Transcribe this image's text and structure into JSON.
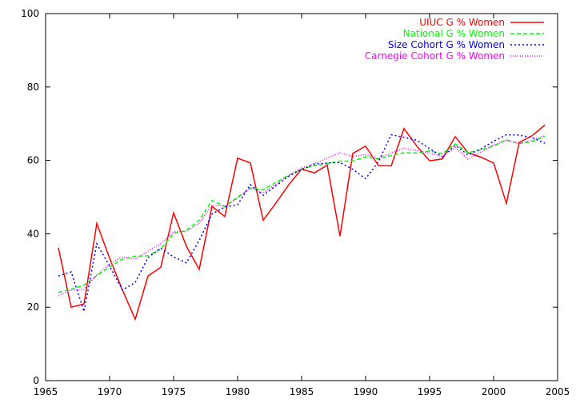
{
  "chart_data": {
    "type": "line",
    "title": "",
    "xlabel": "",
    "ylabel": "",
    "xlim": [
      1965,
      2005
    ],
    "ylim": [
      0,
      100
    ],
    "xticks": [
      1965,
      1970,
      1975,
      1980,
      1985,
      1990,
      1995,
      2000,
      2005
    ],
    "yticks": [
      0,
      20,
      40,
      60,
      80,
      100
    ],
    "grid": false,
    "legend_position": "top-right",
    "series": [
      {
        "name": "UIUC G % Women",
        "color": "#ff0000",
        "dash": "solid",
        "points": [
          [
            1966,
            36.2
          ],
          [
            1967,
            20.0
          ],
          [
            1968,
            20.9
          ],
          [
            1969,
            42.8
          ],
          [
            1970,
            33.4
          ],
          [
            1971,
            24.7
          ],
          [
            1972,
            16.7
          ],
          [
            1973,
            28.5
          ],
          [
            1974,
            30.9
          ],
          [
            1975,
            45.7
          ],
          [
            1976,
            36.6
          ],
          [
            1977,
            30.3
          ],
          [
            1978,
            47.5
          ],
          [
            1979,
            44.7
          ],
          [
            1980,
            60.6
          ],
          [
            1981,
            59.3
          ],
          [
            1982,
            43.7
          ],
          [
            1983,
            48.4
          ],
          [
            1984,
            53.4
          ],
          [
            1985,
            57.6
          ],
          [
            1986,
            56.6
          ],
          [
            1987,
            58.7
          ],
          [
            1988,
            39.4
          ],
          [
            1989,
            61.9
          ],
          [
            1990,
            63.9
          ],
          [
            1991,
            58.6
          ],
          [
            1992,
            58.5
          ],
          [
            1993,
            68.7
          ],
          [
            1994,
            63.9
          ],
          [
            1995,
            59.9
          ],
          [
            1996,
            60.4
          ],
          [
            1997,
            66.5
          ],
          [
            1998,
            62.1
          ],
          [
            1999,
            60.9
          ],
          [
            2000,
            59.3
          ],
          [
            2001,
            48.3
          ],
          [
            2002,
            64.9
          ],
          [
            2003,
            66.7
          ],
          [
            2004,
            69.6
          ]
        ]
      },
      {
        "name": "National G % Women",
        "color": "#00ff00",
        "dash": "dashed",
        "points": [
          [
            1966,
            24.0
          ],
          [
            1967,
            24.9
          ],
          [
            1968,
            26.0
          ],
          [
            1969,
            28.6
          ],
          [
            1970,
            31.0
          ],
          [
            1971,
            33.1
          ],
          [
            1972,
            33.9
          ],
          [
            1973,
            34.0
          ],
          [
            1974,
            35.9
          ],
          [
            1975,
            40.1
          ],
          [
            1976,
            40.9
          ],
          [
            1977,
            43.7
          ],
          [
            1978,
            49.1
          ],
          [
            1979,
            47.4
          ],
          [
            1980,
            50.0
          ],
          [
            1981,
            52.4
          ],
          [
            1982,
            52.0
          ],
          [
            1983,
            54.0
          ],
          [
            1984,
            56.0
          ],
          [
            1985,
            57.6
          ],
          [
            1986,
            58.6
          ],
          [
            1987,
            59.1
          ],
          [
            1988,
            59.8
          ],
          [
            1989,
            59.8
          ],
          [
            1990,
            61.0
          ],
          [
            1991,
            60.4
          ],
          [
            1992,
            61.3
          ],
          [
            1993,
            62.1
          ],
          [
            1994,
            62.0
          ],
          [
            1995,
            62.6
          ],
          [
            1996,
            61.8
          ],
          [
            1997,
            64.5
          ],
          [
            1998,
            62.1
          ],
          [
            1999,
            62.9
          ],
          [
            2000,
            63.9
          ],
          [
            2001,
            65.6
          ],
          [
            2002,
            64.6
          ],
          [
            2003,
            65.1
          ],
          [
            2004,
            66.6
          ]
        ]
      },
      {
        "name": "Size Cohort G % Women",
        "color": "#0000ff",
        "dash": "dotted",
        "points": [
          [
            1966,
            28.5
          ],
          [
            1967,
            29.6
          ],
          [
            1968,
            18.8
          ],
          [
            1969,
            37.3
          ],
          [
            1970,
            31.2
          ],
          [
            1971,
            24.7
          ],
          [
            1972,
            26.7
          ],
          [
            1973,
            33.5
          ],
          [
            1974,
            36.1
          ],
          [
            1975,
            33.7
          ],
          [
            1976,
            32.1
          ],
          [
            1977,
            38.2
          ],
          [
            1978,
            45.4
          ],
          [
            1979,
            47.3
          ],
          [
            1980,
            47.9
          ],
          [
            1981,
            53.4
          ],
          [
            1982,
            50.5
          ],
          [
            1983,
            53.1
          ],
          [
            1984,
            55.7
          ],
          [
            1985,
            57.5
          ],
          [
            1986,
            59.0
          ],
          [
            1987,
            59.3
          ],
          [
            1988,
            59.4
          ],
          [
            1989,
            57.6
          ],
          [
            1990,
            55.0
          ],
          [
            1991,
            59.6
          ],
          [
            1992,
            67.0
          ],
          [
            1993,
            66.3
          ],
          [
            1994,
            65.5
          ],
          [
            1995,
            63.2
          ],
          [
            1996,
            61.0
          ],
          [
            1997,
            64.1
          ],
          [
            1998,
            61.5
          ],
          [
            1999,
            63.1
          ],
          [
            2000,
            65.2
          ],
          [
            2001,
            67.0
          ],
          [
            2002,
            66.9
          ],
          [
            2003,
            66.2
          ],
          [
            2004,
            64.7
          ]
        ]
      },
      {
        "name": "Carnegie Cohort G % Women",
        "color": "#ff00ff",
        "dash": "dotted-fine",
        "points": [
          [
            1966,
            23.1
          ],
          [
            1967,
            24.7
          ],
          [
            1968,
            24.9
          ],
          [
            1969,
            28.8
          ],
          [
            1970,
            31.8
          ],
          [
            1971,
            33.7
          ],
          [
            1972,
            33.1
          ],
          [
            1973,
            35.3
          ],
          [
            1974,
            37.3
          ],
          [
            1975,
            40.6
          ],
          [
            1976,
            40.6
          ],
          [
            1977,
            42.9
          ],
          [
            1978,
            47.8
          ],
          [
            1979,
            47.6
          ],
          [
            1980,
            49.6
          ],
          [
            1981,
            52.6
          ],
          [
            1982,
            51.1
          ],
          [
            1983,
            53.5
          ],
          [
            1984,
            55.9
          ],
          [
            1985,
            57.9
          ],
          [
            1986,
            59.1
          ],
          [
            1987,
            60.6
          ],
          [
            1988,
            62.1
          ],
          [
            1989,
            61.1
          ],
          [
            1990,
            61.6
          ],
          [
            1991,
            60.5
          ],
          [
            1992,
            62.0
          ],
          [
            1993,
            63.3
          ],
          [
            1994,
            62.7
          ],
          [
            1995,
            62.0
          ],
          [
            1996,
            61.1
          ],
          [
            1997,
            63.5
          ],
          [
            1998,
            60.3
          ],
          [
            1999,
            62.3
          ],
          [
            2000,
            64.2
          ],
          [
            2001,
            65.5
          ],
          [
            2002,
            64.6
          ],
          [
            2003,
            65.5
          ],
          [
            2004,
            66.8
          ]
        ]
      }
    ]
  }
}
